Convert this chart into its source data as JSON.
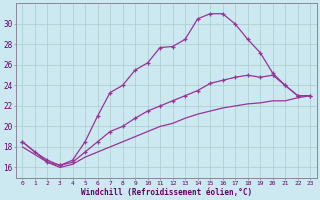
{
  "xlabel": "Windchill (Refroidissement éolien,°C)",
  "bg_color": "#cce8f0",
  "line_color": "#993399",
  "grid_color": "#aacccc",
  "xlim": [
    -0.5,
    23.5
  ],
  "ylim": [
    15.0,
    32.0
  ],
  "yticks": [
    16,
    18,
    20,
    22,
    24,
    26,
    28,
    30
  ],
  "xticks": [
    0,
    1,
    2,
    3,
    4,
    5,
    6,
    7,
    8,
    9,
    10,
    11,
    12,
    13,
    14,
    15,
    16,
    17,
    18,
    19,
    20,
    21,
    22,
    23
  ],
  "line1_x": [
    0,
    1,
    2,
    3,
    4,
    5,
    6,
    7,
    8,
    9,
    10,
    11,
    12,
    13,
    14,
    15,
    16,
    17,
    18,
    19,
    20,
    21,
    22,
    23
  ],
  "line1_y": [
    18.5,
    17.5,
    16.7,
    16.2,
    16.7,
    18.5,
    21.0,
    23.3,
    24.0,
    25.5,
    26.2,
    27.7,
    27.8,
    28.5,
    30.5,
    31.0,
    31.0,
    30.0,
    28.5,
    27.2,
    25.2,
    24.0,
    23.0,
    23.0
  ],
  "line2_x": [
    0,
    2,
    3,
    4,
    5,
    6,
    7,
    8,
    9,
    10,
    11,
    12,
    13,
    14,
    15,
    16,
    17,
    18,
    19,
    20,
    21,
    22,
    23
  ],
  "line2_y": [
    18.5,
    16.5,
    16.2,
    16.5,
    17.5,
    18.5,
    19.5,
    20.0,
    20.8,
    21.5,
    22.0,
    22.5,
    23.0,
    23.5,
    24.2,
    24.5,
    24.8,
    25.0,
    24.8,
    25.0,
    24.0,
    23.0,
    23.0
  ],
  "line3_x": [
    0,
    2,
    3,
    4,
    5,
    6,
    7,
    8,
    9,
    10,
    11,
    12,
    13,
    14,
    15,
    16,
    17,
    18,
    19,
    20,
    21,
    22,
    23
  ],
  "line3_y": [
    18.0,
    16.5,
    16.0,
    16.3,
    17.0,
    17.5,
    18.0,
    18.5,
    19.0,
    19.5,
    20.0,
    20.3,
    20.8,
    21.2,
    21.5,
    21.8,
    22.0,
    22.2,
    22.3,
    22.5,
    22.5,
    22.8,
    23.0
  ]
}
